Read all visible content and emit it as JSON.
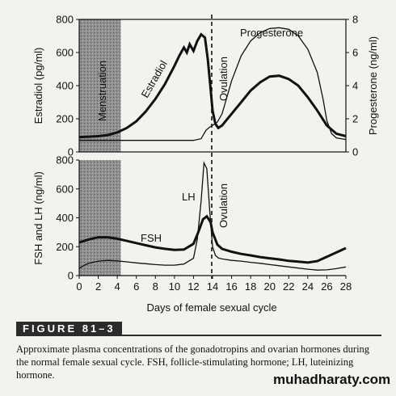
{
  "chart_data": [
    {
      "type": "line",
      "panel": "top",
      "ylabel": "Estradiol (pg/ml)",
      "y2label": "Progesterone (ng/ml)",
      "ylim": [
        0,
        800
      ],
      "y2lim": [
        0,
        8
      ],
      "yticks": [
        "0",
        "200",
        "400",
        "600",
        "800"
      ],
      "y2ticks": [
        "0",
        "2",
        "4",
        "6",
        "8"
      ],
      "annotations": {
        "menstruation": "Menstruation",
        "ovulation": "Ovulation",
        "estradiol": "Estradiol",
        "progesterone": "Progesterone"
      },
      "series": [
        {
          "name": "Estradiol",
          "axis": "left",
          "x": [
            0,
            1,
            2,
            3,
            4,
            5,
            6,
            7,
            8,
            9,
            10,
            10.5,
            11,
            11.3,
            11.6,
            12,
            12.4,
            12.8,
            13.2,
            13.5,
            13.8,
            14,
            14.3,
            14.6,
            15,
            16,
            17,
            18,
            19,
            20,
            21,
            22,
            23,
            24,
            25,
            26,
            27,
            28
          ],
          "y": [
            90,
            92,
            95,
            102,
            118,
            145,
            185,
            245,
            320,
            410,
            520,
            580,
            630,
            600,
            650,
            610,
            670,
            710,
            690,
            560,
            380,
            250,
            170,
            145,
            160,
            230,
            300,
            370,
            420,
            455,
            460,
            440,
            400,
            330,
            250,
            160,
            110,
            95
          ]
        },
        {
          "name": "Progesterone",
          "axis": "right",
          "x": [
            0,
            2,
            4,
            6,
            8,
            10,
            12,
            12.8,
            13.3,
            13.7,
            14,
            14.5,
            15,
            15.5,
            16,
            17,
            18,
            19,
            20,
            21,
            22,
            23,
            24,
            25,
            25.6,
            26,
            26.5,
            27,
            28
          ],
          "y": [
            0.7,
            0.7,
            0.7,
            0.7,
            0.7,
            0.7,
            0.7,
            0.8,
            1.3,
            1.5,
            1.6,
            1.8,
            2.3,
            3.3,
            4.3,
            5.8,
            6.7,
            7.2,
            7.45,
            7.5,
            7.4,
            7.0,
            6.2,
            4.8,
            3.2,
            1.9,
            1.1,
            0.85,
            0.75
          ]
        }
      ]
    },
    {
      "type": "line",
      "panel": "bottom",
      "ylabel": "FSH and LH (ng/ml)",
      "xlabel": "Days of female sexual cycle",
      "ylim": [
        0,
        800
      ],
      "yticks": [
        "0",
        "200",
        "400",
        "600",
        "800"
      ],
      "xticks": [
        "0",
        "2",
        "4",
        "6",
        "8",
        "10",
        "12",
        "14",
        "16",
        "18",
        "20",
        "22",
        "24",
        "26",
        "28"
      ],
      "annotations": {
        "lh": "LH",
        "fsh": "FSH",
        "ovulation": "Ovulation"
      },
      "series": [
        {
          "name": "FSH",
          "x": [
            0,
            1,
            2,
            3,
            4,
            5,
            6,
            7,
            8,
            9,
            10,
            11,
            12,
            12.5,
            13,
            13.4,
            13.8,
            14,
            14.5,
            15,
            16,
            17,
            18,
            19,
            20,
            21,
            22,
            23,
            24,
            25,
            26,
            27,
            28
          ],
          "y": [
            230,
            250,
            265,
            265,
            255,
            240,
            225,
            210,
            195,
            185,
            178,
            180,
            220,
            300,
            390,
            410,
            370,
            300,
            215,
            185,
            165,
            150,
            140,
            128,
            120,
            112,
            102,
            96,
            90,
            100,
            130,
            160,
            190
          ]
        },
        {
          "name": "LH",
          "x": [
            0,
            0.5,
            1,
            2,
            3,
            4,
            5,
            6,
            7,
            8,
            9,
            10,
            11,
            12,
            12.4,
            12.8,
            13.1,
            13.4,
            13.7,
            14,
            14.3,
            14.6,
            15,
            16,
            17,
            18,
            19,
            20,
            21,
            22,
            23,
            24,
            25,
            26,
            27,
            28
          ],
          "y": [
            50,
            70,
            85,
            100,
            105,
            102,
            95,
            88,
            82,
            76,
            72,
            72,
            80,
            120,
            250,
            520,
            780,
            740,
            450,
            200,
            140,
            122,
            115,
            105,
            100,
            92,
            85,
            76,
            68,
            60,
            52,
            44,
            38,
            40,
            48,
            60
          ]
        }
      ]
    }
  ],
  "figure": {
    "label": "FIGURE 81–3",
    "caption": "Approximate plasma concentrations of the gonadotropins and ovarian hormones during the normal female sexual cycle. FSH, follicle-stimulating hormone; LH, luteinizing hormone."
  },
  "watermark": "muhadharaty.com"
}
